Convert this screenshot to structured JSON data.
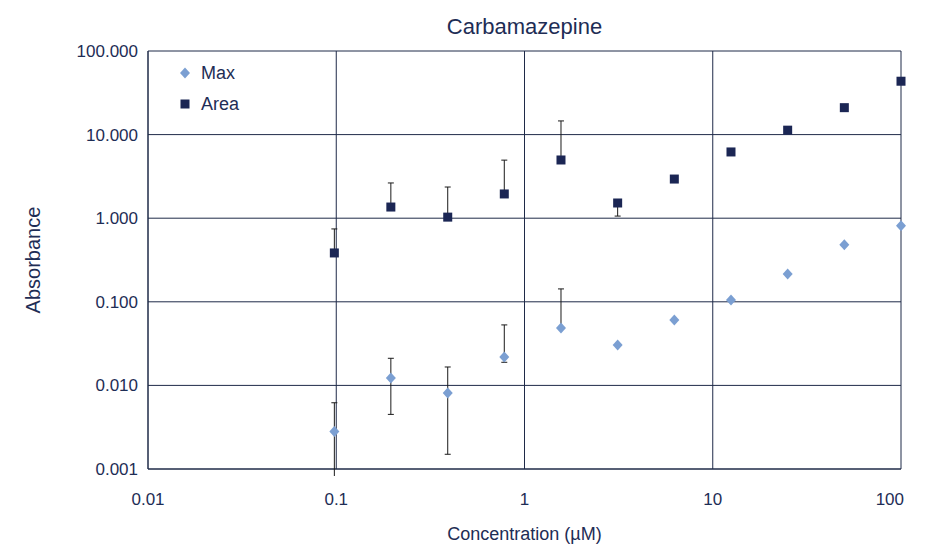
{
  "chart_data": {
    "type": "scatter",
    "title": "Carbamazepine",
    "x_label": "Concentration (µM)",
    "y_label": "Absorbance",
    "log": true,
    "grid": true,
    "legend": "top-left",
    "x": [
      0.0977,
      0.195,
      0.391,
      0.781,
      1.5625,
      3.125,
      6.25,
      12.5,
      25,
      50,
      100
    ],
    "xlim": [
      0.01,
      100
    ],
    "xticks": [
      0.01,
      0.1,
      1,
      10,
      100
    ],
    "ylim": [
      0.001,
      100
    ],
    "yticks": [
      {
        "value": 0.001,
        "label": "0.001"
      },
      {
        "value": 0.01,
        "label": "0.010"
      },
      {
        "value": 0.1,
        "label": "0.100"
      },
      {
        "value": 1,
        "label": "1.000"
      },
      {
        "value": 10,
        "label": "10.000"
      },
      {
        "value": 100,
        "label": "100.000"
      }
    ],
    "series": [
      {
        "name": "Max",
        "color": "#7b9fd2",
        "marker": "diamond",
        "values": [
          0.0028,
          0.0123,
          0.0081,
          0.0219,
          0.0486,
          0.0304,
          0.0605,
          0.105,
          0.215,
          0.48,
          0.81
        ],
        "error_plus": [
          0.0034,
          0.0088,
          0.0085,
          0.031,
          0.094,
          null,
          null,
          null,
          null,
          null,
          null
        ],
        "error_minus": [
          0.0028,
          0.0078,
          0.0066,
          0.003,
          null,
          null,
          null,
          null,
          null,
          null,
          null
        ]
      },
      {
        "name": "Area",
        "color": "#1b2654",
        "marker": "square",
        "values": [
          0.384,
          1.36,
          1.03,
          1.95,
          4.97,
          1.52,
          2.94,
          6.2,
          11.3,
          21,
          43.5
        ],
        "error_plus": [
          0.36,
          1.28,
          1.33,
          3.0,
          9.6,
          0.1,
          null,
          null,
          null,
          null,
          null
        ],
        "error_minus": [
          null,
          null,
          null,
          null,
          null,
          0.46,
          null,
          null,
          null,
          null,
          null
        ]
      }
    ]
  }
}
